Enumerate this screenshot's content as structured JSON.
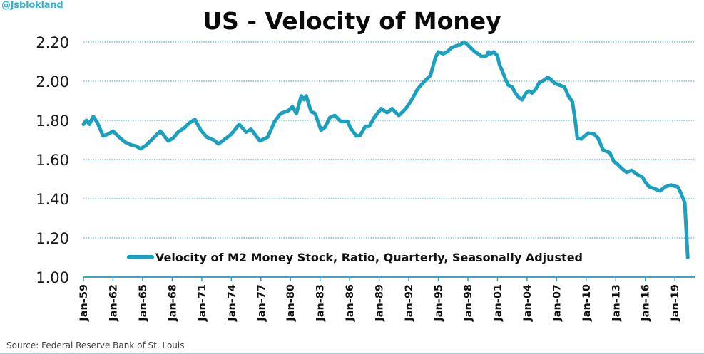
{
  "handle": "@Jsblokland",
  "source": "Source: Federal Reserve Bank of St. Louis",
  "colors": {
    "line": "#1ba1bf",
    "grid": "#4fb4c9",
    "axis": "#3aa9bd",
    "handle": "#3ab0cf"
  },
  "chart_data": {
    "type": "line",
    "title": "US - Velocity of Money",
    "xlabel": "",
    "ylabel": "",
    "ylim": [
      1.0,
      2.2
    ],
    "xlim": [
      1959,
      2021
    ],
    "grid": "horizontal dotted",
    "legend_position": "bottom-center (inside plot)",
    "yticks": [
      "2.20",
      "2.00",
      "1.80",
      "1.60",
      "1.40",
      "1.20",
      "1.00"
    ],
    "ytick_values": [
      2.2,
      2.0,
      1.8,
      1.6,
      1.4,
      1.2,
      1.0
    ],
    "xticks": [
      "Jan-59",
      "Jan-62",
      "Jan-65",
      "Jan-68",
      "Jan-71",
      "Jan-74",
      "Jan-77",
      "Jan-80",
      "Jan-83",
      "Jan-86",
      "Jan-89",
      "Jan-92",
      "Jan-95",
      "Jan-98",
      "Jan-01",
      "Jan-04",
      "Jan-07",
      "Jan-10",
      "Jan-13",
      "Jan-16",
      "Jan-19"
    ],
    "xtick_years": [
      1959,
      1962,
      1965,
      1968,
      1971,
      1974,
      1977,
      1980,
      1983,
      1986,
      1989,
      1992,
      1995,
      1998,
      2001,
      2004,
      2007,
      2010,
      2013,
      2016,
      2019
    ],
    "series": [
      {
        "name": "Velocity of M2 Money Stock, Ratio, Quarterly, Seasonally Adjusted",
        "x": [
          1959.0,
          1959.3,
          1959.6,
          1960.0,
          1960.4,
          1961.0,
          1961.5,
          1962.0,
          1962.6,
          1963.2,
          1963.8,
          1964.3,
          1964.8,
          1965.4,
          1966.1,
          1966.8,
          1967.6,
          1968.1,
          1968.6,
          1969.2,
          1969.7,
          1970.3,
          1970.9,
          1971.5,
          1972.2,
          1972.7,
          1973.5,
          1974.0,
          1974.8,
          1975.5,
          1976.0,
          1976.9,
          1977.7,
          1978.4,
          1979.0,
          1979.8,
          1980.2,
          1980.6,
          1981.1,
          1981.4,
          1981.6,
          1982.1,
          1982.5,
          1983.1,
          1983.5,
          1984.0,
          1984.5,
          1985.1,
          1985.8,
          1986.1,
          1986.7,
          1987.1,
          1987.6,
          1988.0,
          1988.5,
          1989.2,
          1989.8,
          1990.3,
          1991.0,
          1991.7,
          1992.3,
          1992.9,
          1993.6,
          1994.2,
          1994.7,
          1995.0,
          1995.5,
          1995.9,
          1996.3,
          1996.8,
          1997.2,
          1997.6,
          1997.9,
          1998.3,
          1998.7,
          1999.2,
          1999.4,
          1999.9,
          2000.1,
          2000.3,
          2000.6,
          2001.0,
          2001.2,
          2001.5,
          2001.9,
          2002.1,
          2002.5,
          2002.8,
          2003.2,
          2003.5,
          2003.9,
          2004.2,
          2004.5,
          2004.9,
          2005.2,
          2005.7,
          2006.1,
          2006.4,
          2006.8,
          2007.3,
          2007.8,
          2008.2,
          2008.6,
          2008.9,
          2009.1,
          2009.5,
          2010.2,
          2010.8,
          2011.2,
          2011.7,
          2011.9,
          2012.4,
          2012.8,
          2013.1,
          2013.6,
          2014.1,
          2014.6,
          2014.9,
          2015.3,
          2015.7,
          2016.0,
          2016.4,
          2017.0,
          2017.5,
          2018.0,
          2018.6,
          2018.9,
          2019.3,
          2019.6,
          2020.0,
          2020.3
        ],
        "values": [
          1.78,
          1.8,
          1.78,
          1.82,
          1.79,
          1.72,
          1.73,
          1.745,
          1.715,
          1.69,
          1.675,
          1.67,
          1.655,
          1.675,
          1.71,
          1.745,
          1.695,
          1.71,
          1.74,
          1.76,
          1.785,
          1.805,
          1.75,
          1.715,
          1.7,
          1.68,
          1.71,
          1.73,
          1.78,
          1.74,
          1.755,
          1.695,
          1.715,
          1.795,
          1.835,
          1.85,
          1.87,
          1.835,
          1.925,
          1.905,
          1.925,
          1.845,
          1.835,
          1.75,
          1.765,
          1.815,
          1.825,
          1.795,
          1.795,
          1.76,
          1.72,
          1.725,
          1.77,
          1.77,
          1.815,
          1.86,
          1.84,
          1.86,
          1.825,
          1.86,
          1.905,
          1.96,
          2.0,
          2.03,
          2.12,
          2.15,
          2.14,
          2.15,
          2.17,
          2.18,
          2.185,
          2.2,
          2.19,
          2.17,
          2.15,
          2.135,
          2.125,
          2.13,
          2.15,
          2.14,
          2.15,
          2.13,
          2.085,
          2.05,
          2.0,
          1.98,
          1.97,
          1.94,
          1.915,
          1.905,
          1.94,
          1.95,
          1.94,
          1.96,
          1.99,
          2.005,
          2.02,
          2.01,
          1.99,
          1.98,
          1.97,
          1.925,
          1.895,
          1.795,
          1.71,
          1.705,
          1.735,
          1.73,
          1.71,
          1.65,
          1.645,
          1.635,
          1.59,
          1.58,
          1.555,
          1.535,
          1.545,
          1.535,
          1.52,
          1.51,
          1.485,
          1.46,
          1.45,
          1.44,
          1.46,
          1.47,
          1.465,
          1.46,
          1.43,
          1.38,
          1.1
        ]
      }
    ]
  }
}
